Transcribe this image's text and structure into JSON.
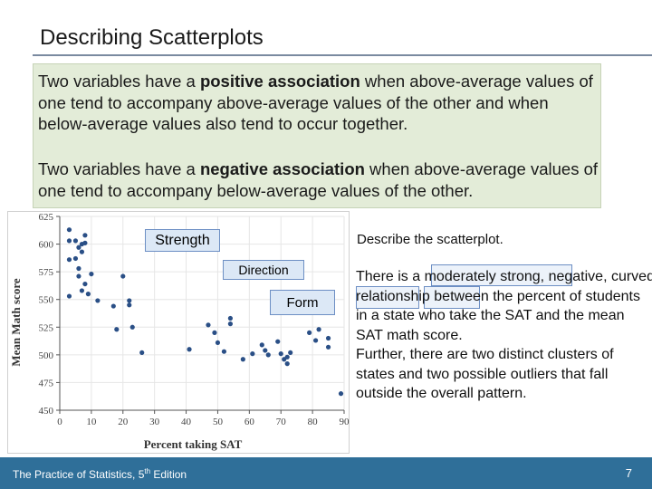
{
  "slide": {
    "title": "Describing Scatterplots",
    "definition_positive": {
      "before": "Two variables have a ",
      "term": "positive association",
      "after": " when above-average values of one tend to accompany above-average values of the other and when below-average values also tend to occur together."
    },
    "definition_negative": {
      "before": "Two variables have a ",
      "term": "negative association",
      "after": " when above-average values of one tend to accompany below-average values of the other."
    },
    "callouts": {
      "strength": "Strength",
      "direction": "Direction",
      "form": "Form"
    },
    "prompt": "Describe the scatterplot.",
    "answer": {
      "p1": "There is a ",
      "h1": "moderately strong,",
      "p2": " ",
      "h2": "negative",
      "p3": ", ",
      "h3": "curved",
      "p4": " relationship between the percent of students in a state who take the SAT and the mean SAT math score.",
      "p5": "Further, there are two distinct clusters of states and two possible outliers that fall outside the overall pattern."
    },
    "footer": {
      "book": "The Practice of Statistics, 5",
      "sup": "th",
      "edition": " Edition"
    },
    "page_number": "7"
  },
  "chart_data": {
    "type": "scatter",
    "xlabel": "Percent taking SAT",
    "ylabel": "Mean Math score",
    "xlim": [
      0,
      90
    ],
    "ylim": [
      450,
      625
    ],
    "xticks": [
      0,
      10,
      20,
      30,
      40,
      50,
      60,
      70,
      80,
      90
    ],
    "yticks": [
      450,
      475,
      500,
      525,
      550,
      575,
      600,
      625
    ],
    "points": [
      {
        "x": 3,
        "y": 613
      },
      {
        "x": 3,
        "y": 603
      },
      {
        "x": 3,
        "y": 586
      },
      {
        "x": 3,
        "y": 553
      },
      {
        "x": 5,
        "y": 603
      },
      {
        "x": 6,
        "y": 597
      },
      {
        "x": 5,
        "y": 587
      },
      {
        "x": 7,
        "y": 600
      },
      {
        "x": 7,
        "y": 593
      },
      {
        "x": 8,
        "y": 608
      },
      {
        "x": 8,
        "y": 601
      },
      {
        "x": 6,
        "y": 578
      },
      {
        "x": 6,
        "y": 571
      },
      {
        "x": 7,
        "y": 558
      },
      {
        "x": 8,
        "y": 564
      },
      {
        "x": 9,
        "y": 555
      },
      {
        "x": 10,
        "y": 573
      },
      {
        "x": 12,
        "y": 549
      },
      {
        "x": 17,
        "y": 544
      },
      {
        "x": 18,
        "y": 523
      },
      {
        "x": 20,
        "y": 571
      },
      {
        "x": 22,
        "y": 545
      },
      {
        "x": 22,
        "y": 549
      },
      {
        "x": 23,
        "y": 525
      },
      {
        "x": 26,
        "y": 502
      },
      {
        "x": 41,
        "y": 505
      },
      {
        "x": 47,
        "y": 527
      },
      {
        "x": 49,
        "y": 520
      },
      {
        "x": 50,
        "y": 511
      },
      {
        "x": 52,
        "y": 503
      },
      {
        "x": 54,
        "y": 533
      },
      {
        "x": 54,
        "y": 528
      },
      {
        "x": 58,
        "y": 496
      },
      {
        "x": 61,
        "y": 501
      },
      {
        "x": 64,
        "y": 509
      },
      {
        "x": 65,
        "y": 504
      },
      {
        "x": 66,
        "y": 500
      },
      {
        "x": 69,
        "y": 512
      },
      {
        "x": 70,
        "y": 501
      },
      {
        "x": 71,
        "y": 496
      },
      {
        "x": 72,
        "y": 492
      },
      {
        "x": 72,
        "y": 498
      },
      {
        "x": 73,
        "y": 502
      },
      {
        "x": 79,
        "y": 520
      },
      {
        "x": 82,
        "y": 523
      },
      {
        "x": 81,
        "y": 513
      },
      {
        "x": 85,
        "y": 515
      },
      {
        "x": 85,
        "y": 507
      },
      {
        "x": 89,
        "y": 465
      }
    ]
  }
}
